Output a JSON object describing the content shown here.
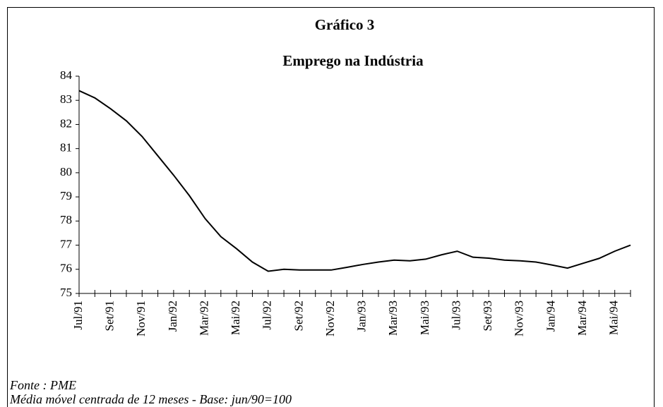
{
  "chart_data": {
    "type": "line",
    "title": "Gráfico 3",
    "subtitle": "Emprego na Indústria",
    "categories": [
      "Jul/91",
      null,
      "Set/91",
      null,
      "Nov/91",
      null,
      "Jan/92",
      null,
      "Mar/92",
      null,
      "Mai/92",
      null,
      "Jul/92",
      null,
      "Set/92",
      null,
      "Nov/92",
      null,
      "Jan/93",
      null,
      "Mar/93",
      null,
      "Mai/93",
      null,
      "Jul/93",
      null,
      "Set/93",
      null,
      "Nov/93",
      null,
      "Jan/94",
      null,
      "Mar/94",
      null,
      "Mai/94",
      null
    ],
    "series": [
      {
        "name": "Emprego",
        "color": "#000000",
        "values": [
          83.4,
          83.1,
          82.65,
          82.15,
          81.5,
          80.7,
          79.9,
          79.05,
          78.1,
          77.35,
          76.85,
          76.3,
          75.92,
          76.0,
          75.97,
          75.97,
          75.97,
          76.08,
          76.2,
          76.3,
          76.38,
          76.35,
          76.42,
          76.6,
          76.75,
          76.5,
          76.46,
          76.38,
          76.35,
          76.3,
          76.18,
          76.05,
          76.25,
          76.45,
          76.75,
          77.0
        ]
      }
    ],
    "ylim": [
      75,
      84
    ],
    "yticks": [
      75,
      76,
      77,
      78,
      79,
      80,
      81,
      82,
      83,
      84
    ],
    "grid": false,
    "notes": [
      "Fonte : PME",
      "Média móvel centrada de 12 meses - Base: jun/90=100"
    ]
  }
}
